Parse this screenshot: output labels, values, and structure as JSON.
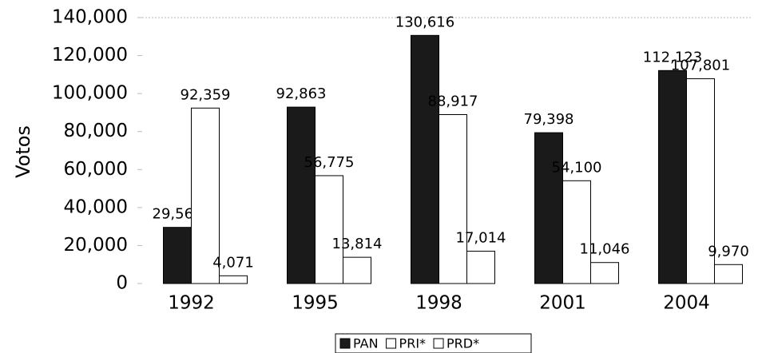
{
  "chart_data": {
    "type": "bar",
    "y_label": "Votos",
    "categories": [
      "1992",
      "1995",
      "1998",
      "2001",
      "2004"
    ],
    "series": [
      {
        "name": "PAN",
        "color": "#1a1a1a",
        "values": [
          29563,
          92863,
          130616,
          79398,
          112123
        ],
        "value_labels": [
          "29,563",
          "92,863",
          "130,616",
          "79,398",
          "112,123"
        ]
      },
      {
        "name": "PRI*",
        "color": "#ffffff",
        "values": [
          92359,
          56775,
          88917,
          54100,
          107801
        ],
        "value_labels": [
          "92,359",
          "56,775",
          "88,917",
          "54,100",
          "107,801"
        ]
      },
      {
        "name": "PRD*",
        "color": "#ffffff",
        "values": [
          4071,
          13814,
          17014,
          11046,
          9970
        ],
        "value_labels": [
          "4,071",
          "13,814",
          "17,014",
          "11,046",
          "9,970"
        ]
      }
    ],
    "ylim": [
      0,
      140000
    ],
    "yticks": [
      0,
      {
        "value": 20000,
        "label": "20,000"
      },
      {
        "value": 40000,
        "label": "40,000"
      },
      {
        "value": 60000,
        "label": "60,000"
      },
      {
        "value": 80000,
        "label": "80,000"
      },
      {
        "value": 100000,
        "label": "100,000"
      },
      {
        "value": 120000,
        "label": "120,000"
      },
      {
        "value": 140000,
        "label": "140,000"
      }
    ],
    "grid": false,
    "legend": "bottom"
  }
}
